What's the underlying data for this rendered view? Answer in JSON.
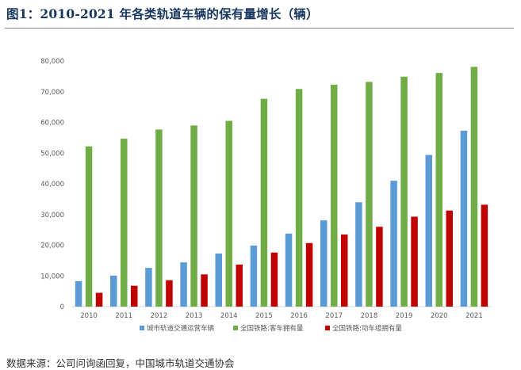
{
  "figure": {
    "title": "图1：2010-2021 年各类轨道车辆的保有量增长（辆）",
    "source": "数据来源：公司问询函回复，中国城市轨道交通协会"
  },
  "chart_data": {
    "type": "bar",
    "categories": [
      "2010",
      "2011",
      "2012",
      "2013",
      "2014",
      "2015",
      "2016",
      "2017",
      "2018",
      "2019",
      "2020",
      "2021"
    ],
    "series": [
      {
        "name": "城市轨道交通运营车辆",
        "color": "#5b9bd5",
        "values": [
          8300,
          10100,
          12600,
          14400,
          17300,
          19900,
          23800,
          28100,
          34000,
          41000,
          49400,
          57300
        ]
      },
      {
        "name": "全国铁路:客车拥有量",
        "color": "#70ad47",
        "values": [
          52200,
          54700,
          57700,
          59000,
          60500,
          67700,
          70900,
          72300,
          73200,
          74900,
          76100,
          78100
        ]
      },
      {
        "name": "全国铁路:动车组拥有量",
        "color": "#c00000",
        "values": [
          4500,
          6800,
          8600,
          10500,
          13700,
          17600,
          20700,
          23500,
          26000,
          29300,
          31300,
          33200
        ]
      }
    ],
    "yticks": [
      "0",
      "10,000",
      "20,000",
      "30,000",
      "40,000",
      "50,000",
      "60,000",
      "70,000",
      "80,000"
    ],
    "ylim": [
      0,
      80000
    ],
    "grid": false,
    "legend": "bottom"
  }
}
